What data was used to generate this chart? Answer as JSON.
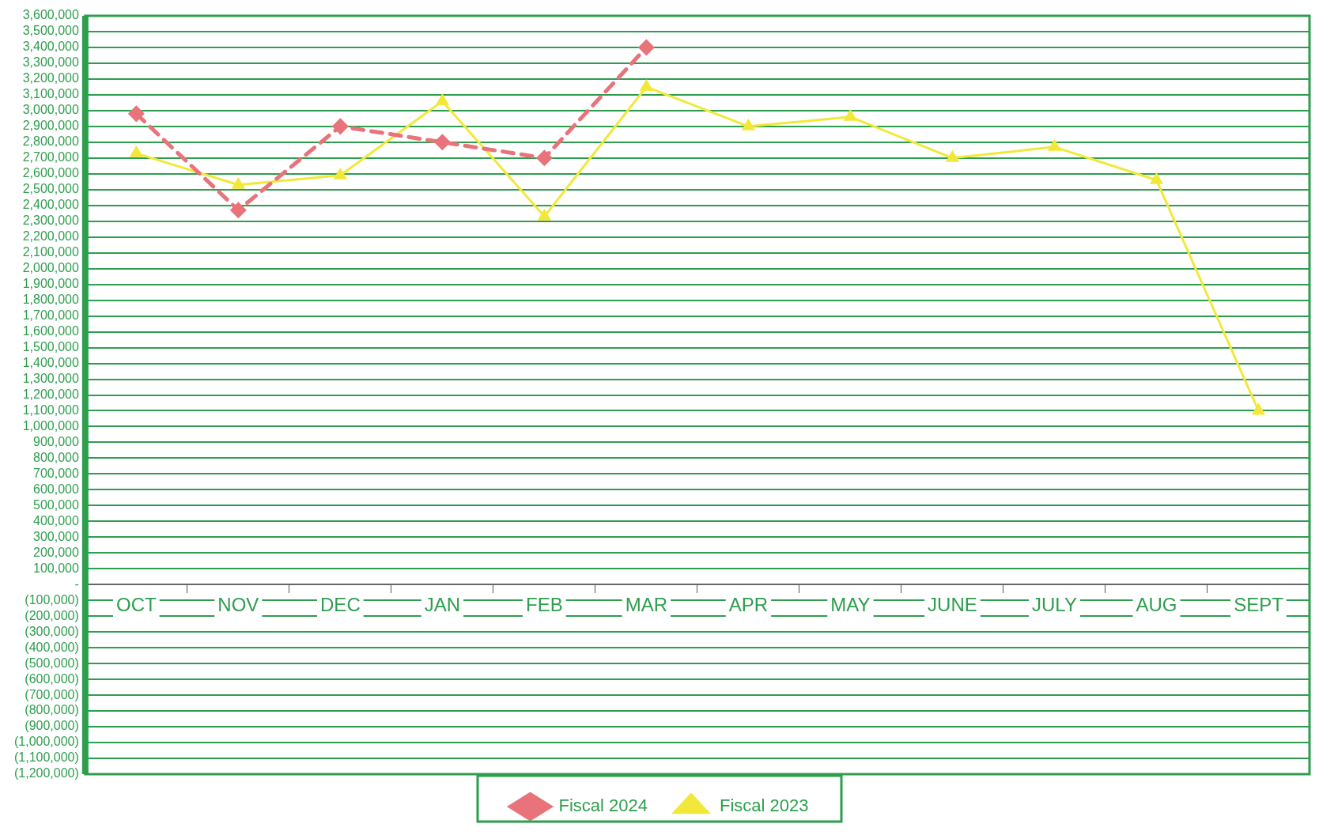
{
  "chart_data": {
    "type": "line",
    "categories": [
      "OCT",
      "NOV",
      "DEC",
      "JAN",
      "FEB",
      "MAR",
      "APR",
      "MAY",
      "JUNE",
      "JULY",
      "AUG",
      "SEPT"
    ],
    "series": [
      {
        "name": "Fiscal 2024",
        "color": "#e8737a",
        "marker": "diamond",
        "line_style": "dashed",
        "values": [
          2980000,
          2370000,
          2900000,
          2800000,
          2700000,
          3400000,
          null,
          null,
          null,
          null,
          null,
          null
        ]
      },
      {
        "name": "Fiscal 2023",
        "color": "#f2e83a",
        "marker": "triangle",
        "line_style": "solid",
        "values": [
          2730000,
          2530000,
          2590000,
          3060000,
          2330000,
          3150000,
          2900000,
          2960000,
          2700000,
          2770000,
          2560000,
          1100000
        ]
      }
    ],
    "ylim": [
      -1200000,
      3600000
    ],
    "yticks": [
      {
        "value": -1200000,
        "label": "(1,200,000)"
      },
      {
        "value": -1100000,
        "label": "(1,100,000)"
      },
      {
        "value": -1000000,
        "label": "(1,000,000)"
      },
      {
        "value": -900000,
        "label": "(900,000)"
      },
      {
        "value": -800000,
        "label": "(800,000)"
      },
      {
        "value": -700000,
        "label": "(700,000)"
      },
      {
        "value": -600000,
        "label": "(600,000)"
      },
      {
        "value": -500000,
        "label": "(500,000)"
      },
      {
        "value": -400000,
        "label": "(400,000)"
      },
      {
        "value": -300000,
        "label": "(300,000)"
      },
      {
        "value": -200000,
        "label": "(200,000)"
      },
      {
        "value": -100000,
        "label": "(100,000)"
      },
      {
        "value": 0,
        "label": "-"
      },
      {
        "value": 100000,
        "label": "100,000"
      },
      {
        "value": 200000,
        "label": "200,000"
      },
      {
        "value": 300000,
        "label": "300,000"
      },
      {
        "value": 400000,
        "label": "400,000"
      },
      {
        "value": 500000,
        "label": "500,000"
      },
      {
        "value": 600000,
        "label": "600,000"
      },
      {
        "value": 700000,
        "label": "700,000"
      },
      {
        "value": 800000,
        "label": "800,000"
      },
      {
        "value": 900000,
        "label": "900,000"
      },
      {
        "value": 1000000,
        "label": "1,000,000"
      },
      {
        "value": 1100000,
        "label": "1,100,000"
      },
      {
        "value": 1200000,
        "label": "1,200,000"
      },
      {
        "value": 1300000,
        "label": "1,300,000"
      },
      {
        "value": 1400000,
        "label": "1,400,000"
      },
      {
        "value": 1500000,
        "label": "1,500,000"
      },
      {
        "value": 1600000,
        "label": "1,600,000"
      },
      {
        "value": 1700000,
        "label": "1,700,000"
      },
      {
        "value": 1800000,
        "label": "1,800,000"
      },
      {
        "value": 1900000,
        "label": "1,900,000"
      },
      {
        "value": 2000000,
        "label": "2,000,000"
      },
      {
        "value": 2100000,
        "label": "2,100,000"
      },
      {
        "value": 2200000,
        "label": "2,200,000"
      },
      {
        "value": 2300000,
        "label": "2,300,000"
      },
      {
        "value": 2400000,
        "label": "2,400,000"
      },
      {
        "value": 2500000,
        "label": "2,500,000"
      },
      {
        "value": 2600000,
        "label": "2,600,000"
      },
      {
        "value": 2700000,
        "label": "2,700,000"
      },
      {
        "value": 2800000,
        "label": "2,800,000"
      },
      {
        "value": 2900000,
        "label": "2,900,000"
      },
      {
        "value": 3000000,
        "label": "3,000,000"
      },
      {
        "value": 3100000,
        "label": "3,100,000"
      },
      {
        "value": 3200000,
        "label": "3,200,000"
      },
      {
        "value": 3300000,
        "label": "3,300,000"
      },
      {
        "value": 3400000,
        "label": "3,400,000"
      },
      {
        "value": 3500000,
        "label": "3,500,000"
      },
      {
        "value": 3600000,
        "label": "3,600,000"
      }
    ],
    "grid": "y",
    "legend": "bottom"
  }
}
